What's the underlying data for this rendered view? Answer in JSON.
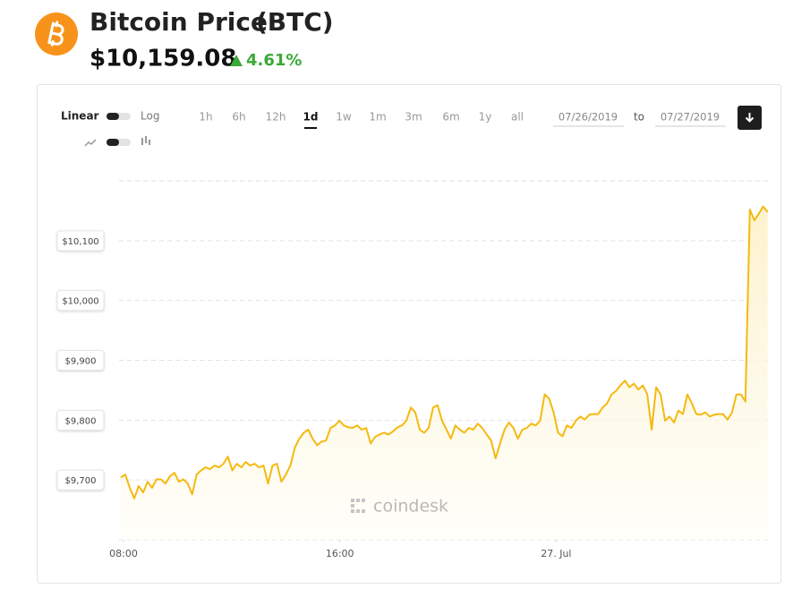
{
  "header": {
    "title": "Bitcoin Price",
    "symbol": "(BTC)",
    "price": "$10,159.08",
    "change": "4.61%"
  },
  "controls": {
    "scale_linear": "Linear",
    "scale_log": "Log",
    "ranges": [
      "1h",
      "6h",
      "12h",
      "1d",
      "1w",
      "1m",
      "3m",
      "6m",
      "1y",
      "all"
    ],
    "selected_range": 3,
    "date_from": "07/26/2019",
    "date_to_word": "to",
    "date_to": "07/27/2019"
  },
  "watermark": "coindesk",
  "chart_data": {
    "type": "line",
    "color": "#f5b90f",
    "fill_area": true,
    "grid": true,
    "x": [
      7.9,
      8.065,
      8.23,
      8.395,
      8.56,
      8.725,
      8.89,
      9.055,
      9.22,
      9.385,
      9.55,
      9.715,
      9.88,
      10.045,
      10.21,
      10.375,
      10.54,
      10.705,
      10.87,
      11.035,
      11.2,
      11.365,
      11.53,
      11.695,
      11.86,
      12.025,
      12.19,
      12.355,
      12.52,
      12.685,
      12.85,
      13.015,
      13.18,
      13.345,
      13.51,
      13.675,
      13.84,
      14.005,
      14.17,
      14.335,
      14.5,
      14.665,
      14.83,
      14.995,
      15.16,
      15.325,
      15.49,
      15.655,
      15.82,
      15.985,
      16.15,
      16.315,
      16.48,
      16.645,
      16.81,
      16.975,
      17.14,
      17.305,
      17.47,
      17.635,
      17.8,
      17.965,
      18.13,
      18.295,
      18.46,
      18.625,
      18.79,
      18.955,
      19.12,
      19.285,
      19.45,
      19.615,
      19.78,
      19.945,
      20.11,
      20.275,
      20.44,
      20.605,
      20.77,
      20.935,
      21.1,
      21.265,
      21.43,
      21.595,
      21.76,
      21.925,
      22.09,
      22.255,
      22.42,
      22.585,
      22.75,
      22.915,
      23.08,
      23.245,
      23.41,
      23.575,
      23.74,
      23.905,
      24.07,
      24.235,
      24.4,
      24.565,
      24.73,
      24.895,
      25.06,
      25.225,
      25.39,
      25.555,
      25.72,
      25.885,
      26.05,
      26.215,
      26.38,
      26.545,
      26.71,
      26.875,
      27.04,
      27.205,
      27.37,
      27.535,
      27.7,
      27.865,
      28.03,
      28.195,
      28.36,
      28.525,
      28.69,
      28.855,
      29.02,
      29.185,
      29.35,
      29.515,
      29.68,
      29.845,
      30.01,
      30.175,
      30.34,
      30.505,
      30.67,
      30.835,
      31.0,
      31.165,
      31.33,
      31.495,
      31.66,
      31.825
    ],
    "values": [
      9704,
      9709,
      9687,
      9669,
      9690,
      9679,
      9697,
      9687,
      9701,
      9701,
      9694,
      9706,
      9712,
      9697,
      9701,
      9694,
      9676,
      9709,
      9716,
      9721,
      9718,
      9724,
      9721,
      9727,
      9739,
      9716,
      9727,
      9721,
      9730,
      9724,
      9727,
      9721,
      9724,
      9694,
      9724,
      9727,
      9697,
      9709,
      9724,
      9754,
      9769,
      9779,
      9784,
      9769,
      9758,
      9764,
      9766,
      9787,
      9791,
      9799,
      9791,
      9788,
      9787,
      9791,
      9784,
      9787,
      9761,
      9772,
      9776,
      9779,
      9776,
      9781,
      9788,
      9791,
      9799,
      9821,
      9813,
      9784,
      9779,
      9787,
      9821,
      9825,
      9799,
      9784,
      9769,
      9791,
      9784,
      9779,
      9787,
      9784,
      9794,
      9787,
      9776,
      9766,
      9736,
      9761,
      9784,
      9796,
      9787,
      9769,
      9784,
      9787,
      9794,
      9791,
      9799,
      9843,
      9836,
      9813,
      9779,
      9773,
      9791,
      9787,
      9799,
      9806,
      9801,
      9809,
      9810,
      9810,
      9821,
      9828,
      9843,
      9849,
      9858,
      9866,
      9855,
      9861,
      9851,
      9858,
      9843,
      9784,
      9855,
      9843,
      9799,
      9806,
      9796,
      9816,
      9810,
      9843,
      9828,
      9810,
      9809,
      9813,
      9806,
      9809,
      9810,
      9810,
      9801,
      9813,
      9843,
      9843,
      9831,
      10152,
      10134,
      10145,
      10157,
      10148
    ],
    "xlim": [
      7.9,
      31.9
    ],
    "xticks": [
      {
        "value": 8,
        "label": "08:00"
      },
      {
        "value": 16,
        "label": "16:00"
      },
      {
        "value": 24,
        "label": "27. Jul"
      }
    ],
    "ylim": [
      9600,
      10200
    ],
    "yticks": [
      {
        "value": 9700,
        "label": "$9,700"
      },
      {
        "value": 9800,
        "label": "$9,800"
      },
      {
        "value": 9900,
        "label": "$9,900"
      },
      {
        "value": 10000,
        "label": "$10,000"
      },
      {
        "value": 10100,
        "label": "$10,100"
      }
    ]
  }
}
